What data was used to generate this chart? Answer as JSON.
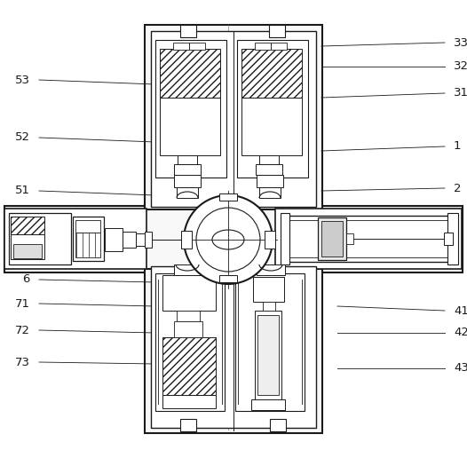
{
  "bg_color": "#ffffff",
  "lc": "#1a1a1a",
  "figw": 5.26,
  "figh": 5.07,
  "dpi": 100,
  "label_fs": 9.5,
  "right_labels": [
    [
      "33",
      362,
      52,
      505,
      48
    ],
    [
      "32",
      362,
      75,
      505,
      75
    ],
    [
      "31",
      362,
      110,
      505,
      105
    ],
    [
      "1",
      362,
      170,
      505,
      165
    ],
    [
      "2",
      362,
      215,
      505,
      212
    ],
    [
      "41",
      380,
      345,
      505,
      350
    ],
    [
      "42",
      380,
      375,
      505,
      375
    ],
    [
      "43",
      380,
      415,
      505,
      415
    ]
  ],
  "left_labels": [
    [
      "53",
      175,
      95,
      40,
      90
    ],
    [
      "52",
      175,
      160,
      40,
      155
    ],
    [
      "51",
      175,
      220,
      40,
      215
    ],
    [
      "6",
      175,
      318,
      40,
      315
    ],
    [
      "71",
      175,
      345,
      40,
      342
    ],
    [
      "72",
      175,
      375,
      40,
      372
    ],
    [
      "73",
      175,
      410,
      40,
      408
    ]
  ]
}
